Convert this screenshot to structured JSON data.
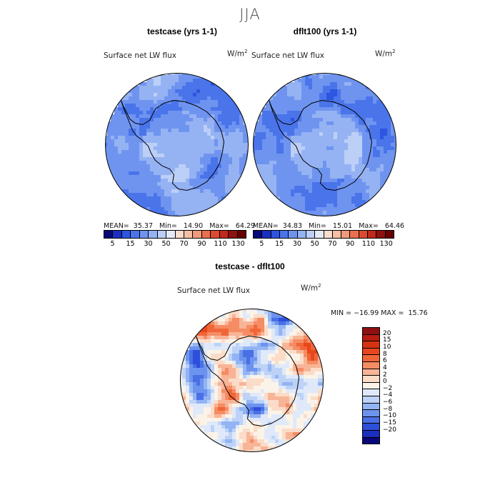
{
  "season": "JJA",
  "panels": {
    "left": {
      "title": "testcase (yrs 1-1)",
      "variable": "Surface net LW flux",
      "units": "W/m",
      "units_exp": "2",
      "stats": "MEAN=  35.37   Min=   14.90   Max=   64.29"
    },
    "right": {
      "title": "dflt100 (yrs 1-1)",
      "variable": "Surface net LW flux",
      "units": "W/m",
      "units_exp": "2",
      "stats": "MEAN=  34.83   Min=   15.01   Max=   64.46"
    },
    "diff": {
      "title": "testcase - dflt100",
      "variable": "Surface net LW flux",
      "units": "W/m",
      "units_exp": "2",
      "stats": "MIN = −16.99 MAX =  15.76"
    }
  },
  "chart_data": [
    {
      "type": "heatmap",
      "title": "testcase (yrs 1-1)",
      "variable": "Surface net LW flux",
      "units": "W/m2",
      "projection": "south polar stereographic",
      "stats": {
        "mean": 35.37,
        "min": 14.9,
        "max": 64.29
      },
      "colorbar": {
        "levels": [
          5,
          10,
          15,
          20,
          30,
          40,
          50,
          60,
          70,
          80,
          90,
          100,
          110,
          120,
          130
        ],
        "tick_labels": [
          "5",
          "15",
          "30",
          "50",
          "70",
          "90",
          "110",
          "130"
        ],
        "colors": [
          "#08087a",
          "#1a2fc2",
          "#2e55e0",
          "#4a74ea",
          "#6f94f0",
          "#95b2f3",
          "#bccff6",
          "#e4ebf8",
          "#f9dccb",
          "#f5bfa3",
          "#f09a7b",
          "#e87050",
          "#dc4a30",
          "#c02a1c",
          "#8f1010",
          "#660000"
        ]
      }
    },
    {
      "type": "heatmap",
      "title": "dflt100 (yrs 1-1)",
      "variable": "Surface net LW flux",
      "units": "W/m2",
      "projection": "south polar stereographic",
      "stats": {
        "mean": 34.83,
        "min": 15.01,
        "max": 64.46
      },
      "colorbar": {
        "levels": [
          5,
          10,
          15,
          20,
          30,
          40,
          50,
          60,
          70,
          80,
          90,
          100,
          110,
          120,
          130
        ],
        "tick_labels": [
          "5",
          "15",
          "30",
          "50",
          "70",
          "90",
          "110",
          "130"
        ],
        "colors": [
          "#08087a",
          "#1a2fc2",
          "#2e55e0",
          "#4a74ea",
          "#6f94f0",
          "#95b2f3",
          "#bccff6",
          "#e4ebf8",
          "#f9dccb",
          "#f5bfa3",
          "#f09a7b",
          "#e87050",
          "#dc4a30",
          "#c02a1c",
          "#8f1010",
          "#660000"
        ]
      }
    },
    {
      "type": "heatmap",
      "title": "testcase - dflt100",
      "variable": "Surface net LW flux",
      "units": "W/m2",
      "projection": "south polar stereographic",
      "stats": {
        "min": -16.99,
        "max": 15.76
      },
      "colorbar": {
        "orientation": "vertical",
        "tick_labels": [
          "20",
          "15",
          "10",
          "8",
          "6",
          "4",
          "2",
          "0",
          "−2",
          "−4",
          "−6",
          "−8",
          "−10",
          "−15",
          "−20"
        ],
        "colors": [
          "#8f1010",
          "#b81d10",
          "#d63212",
          "#e8461c",
          "#f06638",
          "#f58c64",
          "#f8b496",
          "#fbdcc8",
          "#fbf3e8",
          "#dfe9fa",
          "#bdd2f6",
          "#93b4f3",
          "#6c93ee",
          "#4a70e6",
          "#2d4fda",
          "#1a2ec0",
          "#08087a"
        ]
      }
    }
  ]
}
